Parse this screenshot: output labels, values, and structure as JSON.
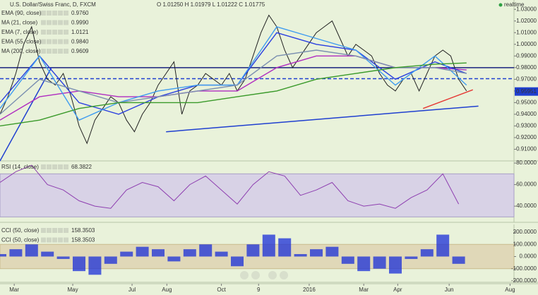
{
  "chart_data": [
    {
      "type": "line",
      "title": "U.S. Dollar/Swiss Franc, D, FXCM",
      "ohlc": "O 1.01250  H 1.01979  L 1.01222  C 1.01775",
      "status": "realtime",
      "xlim": [
        0,
        65
      ],
      "xticks": [
        {
          "value": 1.8,
          "label": "Mar"
        },
        {
          "value": 9.2,
          "label": "May"
        },
        {
          "value": 16.7,
          "label": "Jul"
        },
        {
          "value": 21.1,
          "label": "Aug"
        },
        {
          "value": 28,
          "label": "Oct"
        },
        {
          "value": 32.7,
          "label": "9"
        },
        {
          "value": 39.1,
          "label": "2016"
        },
        {
          "value": 46,
          "label": "Mar"
        },
        {
          "value": 50.3,
          "label": "Apr"
        },
        {
          "value": 56.8,
          "label": "Jun"
        },
        {
          "value": 64.5,
          "label": "Aug"
        }
      ],
      "ylim": [
        0.9,
        1.038
      ],
      "yticks": [
        {
          "value": 1.03,
          "label": "1.03000"
        },
        {
          "value": 1.02,
          "label": "1.02000"
        },
        {
          "value": 1.01,
          "label": "1.01000"
        },
        {
          "value": 1.0,
          "label": "1.00000"
        },
        {
          "value": 0.99,
          "label": "0.99000"
        },
        {
          "value": 0.98,
          "label": "0.98000"
        },
        {
          "value": 0.97,
          "label": "0.97000"
        },
        {
          "value": 0.96,
          "label": "0.96000"
        },
        {
          "value": 0.95,
          "label": "0.95000"
        },
        {
          "value": 0.94,
          "label": "0.94000"
        },
        {
          "value": 0.93,
          "label": "0.93000"
        },
        {
          "value": 0.92,
          "label": "0.92000"
        },
        {
          "value": 0.91,
          "label": "0.91000"
        }
      ],
      "last_price": 0.95951,
      "hlines": [
        {
          "value": 0.98,
          "color": "#1a237e",
          "dash": false
        },
        {
          "value": 0.9705,
          "color": "#1f3fd0",
          "dash": true
        }
      ],
      "trendlines": [
        {
          "x": [
            21,
            60.5
          ],
          "y": [
            0.925,
            0.947
          ],
          "color": "#1f3fd0"
        },
        {
          "x": [
            0,
            6.5
          ],
          "y": [
            0.9,
            0.98
          ],
          "color": "#1f3fd0"
        },
        {
          "x": [
            53.5,
            59.8
          ],
          "y": [
            0.945,
            0.961
          ],
          "color": "#e53935"
        }
      ],
      "series": [
        {
          "color": "#222222",
          "x": [
            0,
            1,
            2,
            3,
            4,
            5,
            6,
            7,
            8,
            9,
            10,
            11,
            12,
            13,
            14,
            15,
            16,
            17,
            18,
            19,
            20,
            21,
            22,
            23,
            24,
            25,
            26,
            27,
            28,
            29,
            30,
            31,
            32,
            33,
            34,
            35,
            36,
            37,
            38,
            39,
            40,
            41,
            42,
            43,
            44,
            45,
            46,
            47,
            48,
            49,
            50,
            51,
            52,
            53,
            54,
            55,
            56,
            57,
            58,
            59
          ],
          "values": [
            0.94,
            0.955,
            0.975,
            1.0,
            1.015,
            0.985,
            0.97,
            0.965,
            0.975,
            0.955,
            0.93,
            0.915,
            0.935,
            0.945,
            0.955,
            0.95,
            0.935,
            0.925,
            0.94,
            0.95,
            0.965,
            0.975,
            0.985,
            0.94,
            0.96,
            0.965,
            0.975,
            0.97,
            0.965,
            0.975,
            0.96,
            0.97,
            0.99,
            1.01,
            1.025,
            1.015,
            0.995,
            0.98,
            0.99,
            1.0,
            1.01,
            1.015,
            1.02,
            1.005,
            0.99,
            1.0,
            0.995,
            0.99,
            0.975,
            0.965,
            0.96,
            0.97,
            0.975,
            0.96,
            0.975,
            0.99,
            0.995,
            0.99,
            0.97,
            0.96
          ]
        },
        {
          "name": "EMA (90, close)",
          "last_label": "0.9760",
          "color": "#b02cc0",
          "x": [
            0,
            5,
            10,
            15,
            20,
            25,
            30,
            35,
            40,
            45,
            50,
            55,
            59
          ],
          "values": [
            0.935,
            0.955,
            0.96,
            0.955,
            0.955,
            0.96,
            0.96,
            0.98,
            0.99,
            0.99,
            0.98,
            0.98,
            0.978
          ]
        },
        {
          "name": "MA (21, close)",
          "last_label": "0.9990",
          "color": "#2a3fe0",
          "x": [
            0,
            5,
            10,
            15,
            20,
            25,
            30,
            35,
            40,
            45,
            50,
            55,
            59
          ],
          "values": [
            0.95,
            0.99,
            0.95,
            0.94,
            0.955,
            0.965,
            0.965,
            1.01,
            1.0,
            0.995,
            0.97,
            0.985,
            0.975
          ]
        },
        {
          "name": "EMA (7, close)",
          "last_label": "1.0121",
          "color": "#3f9cf0",
          "x": [
            0,
            5,
            10,
            15,
            20,
            25,
            30,
            35,
            40,
            45,
            50,
            55,
            59
          ],
          "values": [
            0.945,
            0.99,
            0.935,
            0.95,
            0.96,
            0.965,
            0.965,
            1.015,
            1.005,
            0.995,
            0.965,
            0.99,
            0.965
          ]
        },
        {
          "name": "EMA (55, close)",
          "last_label": "0.9840",
          "color": "#7a8fb0",
          "x": [
            0,
            5,
            10,
            15,
            20,
            25,
            30,
            35,
            40,
            45,
            50,
            55,
            59
          ],
          "values": [
            0.94,
            0.97,
            0.96,
            0.95,
            0.955,
            0.96,
            0.965,
            0.99,
            0.995,
            0.99,
            0.98,
            0.98,
            0.975
          ]
        },
        {
          "name": "MA (200, close)",
          "last_label": "0.9609",
          "color": "#3a9a2a",
          "x": [
            0,
            5,
            10,
            15,
            20,
            25,
            30,
            35,
            40,
            45,
            50,
            55,
            59
          ],
          "values": [
            0.93,
            0.935,
            0.945,
            0.95,
            0.95,
            0.95,
            0.955,
            0.96,
            0.97,
            0.975,
            0.98,
            0.983,
            0.984
          ]
        }
      ]
    },
    {
      "type": "line",
      "xlim": [
        0,
        65
      ],
      "ylim": [
        25,
        82
      ],
      "band": [
        30,
        70
      ],
      "yticks": [
        {
          "value": 80,
          "label": "80.0000"
        },
        {
          "value": 60,
          "label": "60.0000"
        },
        {
          "value": 40,
          "label": "40.0000"
        }
      ],
      "series": [
        {
          "name": "RSI (14, close)",
          "last_label": "68.3822",
          "color": "#8e3fb0",
          "x": [
            0,
            2,
            4,
            6,
            8,
            10,
            12,
            14,
            16,
            18,
            20,
            22,
            24,
            26,
            28,
            30,
            32,
            34,
            36,
            38,
            40,
            42,
            44,
            46,
            48,
            50,
            52,
            54,
            56,
            58
          ],
          "values": [
            62,
            72,
            78,
            60,
            55,
            45,
            40,
            38,
            55,
            62,
            58,
            45,
            60,
            68,
            55,
            42,
            60,
            72,
            68,
            50,
            55,
            62,
            45,
            40,
            42,
            38,
            48,
            55,
            70,
            42
          ]
        }
      ]
    },
    {
      "type": "bar",
      "xlim": [
        0,
        65
      ],
      "ylim": [
        -212,
        264
      ],
      "band": [
        -100,
        100
      ],
      "yticks": [
        {
          "value": 200,
          "label": "200.0000"
        },
        {
          "value": 100,
          "label": "100.0000"
        },
        {
          "value": 0,
          "label": "0.0000"
        },
        {
          "value": -100,
          "label": "-100.0000"
        },
        {
          "value": -200,
          "label": "-200.0000"
        }
      ],
      "extra_legend": {
        "name": "CCI (50, close)",
        "value": "158.3503"
      },
      "series": [
        {
          "name": "CCI (50, close)",
          "last_label": "158.3503",
          "color": "#1a2ed8",
          "x": [
            0,
            2,
            4,
            6,
            8,
            10,
            12,
            14,
            16,
            18,
            20,
            22,
            24,
            26,
            28,
            30,
            32,
            34,
            36,
            38,
            40,
            42,
            44,
            46,
            48,
            50,
            52,
            54,
            56,
            58
          ],
          "values": [
            20,
            60,
            100,
            40,
            -20,
            -120,
            -150,
            -60,
            40,
            80,
            60,
            -40,
            60,
            100,
            40,
            -80,
            100,
            180,
            150,
            20,
            60,
            80,
            -60,
            -120,
            -100,
            -140,
            -20,
            60,
            180,
            -60
          ]
        }
      ]
    }
  ]
}
